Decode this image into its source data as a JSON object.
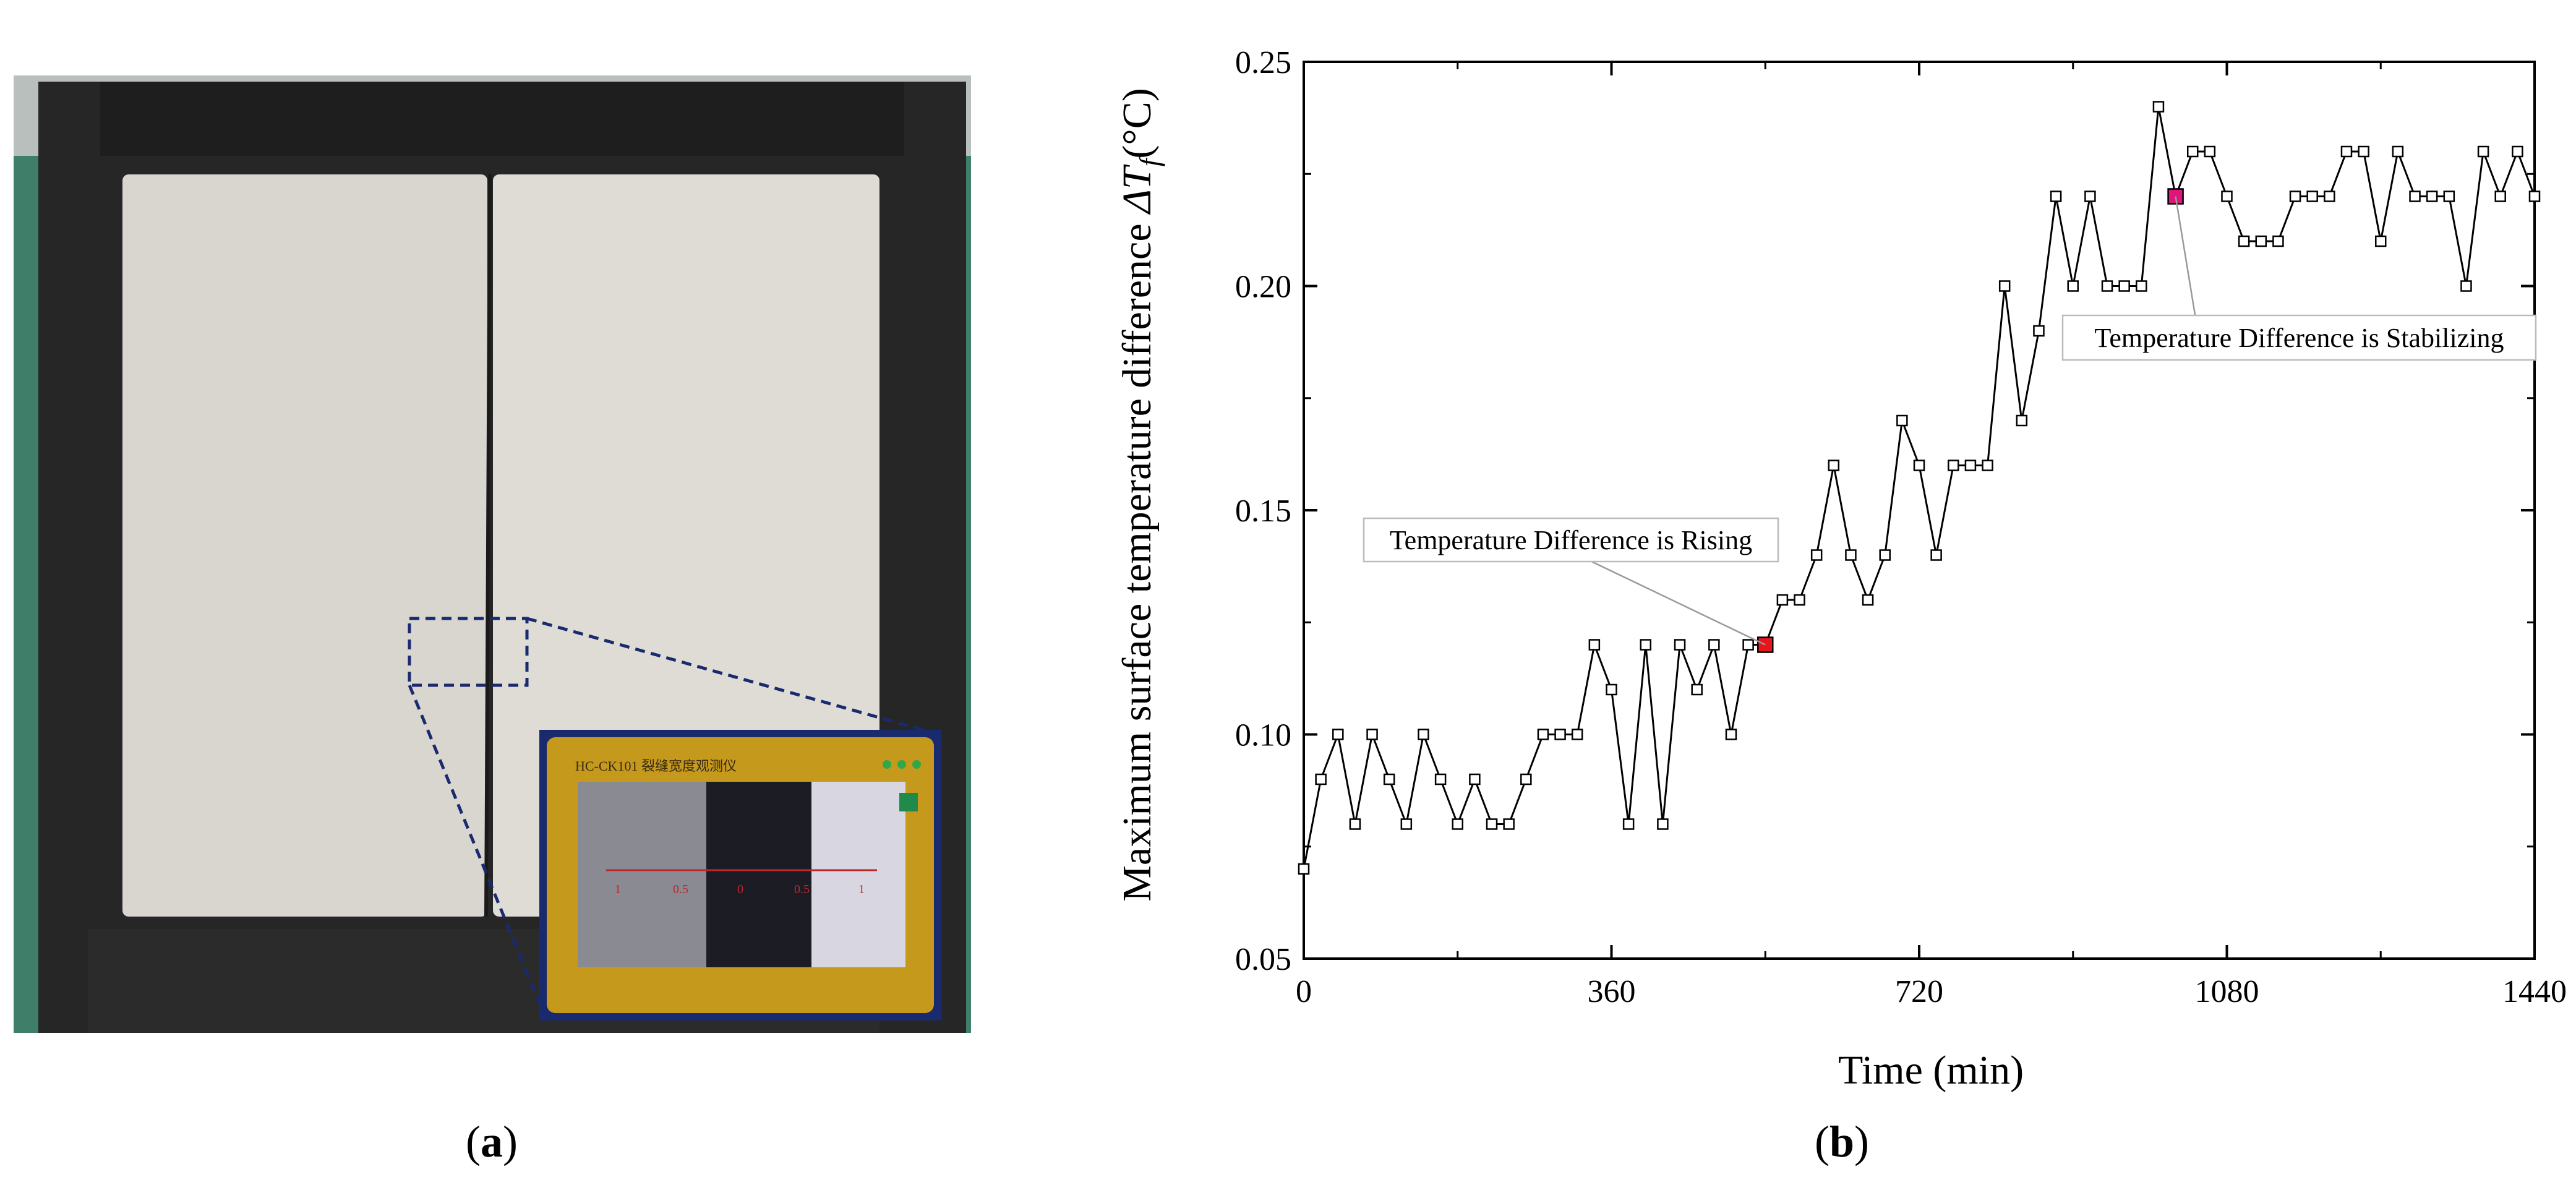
{
  "panels": {
    "a": {
      "open": "(",
      "letter": "a",
      "close": ")"
    },
    "b": {
      "open": "(",
      "letter": "b",
      "close": ")"
    }
  },
  "device": {
    "model_text": "HC-CK101 裂缝宽度观测仪",
    "scale_labels": [
      "1",
      "0.5",
      "0",
      "0.5",
      "1"
    ]
  },
  "colors": {
    "rising_marker": "#e8151b",
    "stabilizing_marker": "#e0157a",
    "device_frame": "#c59a1c",
    "dashed_box": "#1a2a6e"
  },
  "chart_data": {
    "type": "line",
    "xlabel": "Time (min)",
    "ylabel_prefix": "Maximum surface temperature difference ",
    "ylabel_symbol": "ΔT",
    "ylabel_subscript": "f",
    "ylabel_unit": "(°C)",
    "xlim": [
      0,
      1440
    ],
    "ylim": [
      0.05,
      0.25
    ],
    "xticks": [
      0,
      360,
      720,
      1080,
      1440
    ],
    "xtick_labels": [
      "0",
      "360",
      "720",
      "1080",
      "1440"
    ],
    "yticks": [
      0.05,
      0.1,
      0.15,
      0.2,
      0.25
    ],
    "ytick_labels": [
      "0.05",
      "0.10",
      "0.15",
      "0.20",
      "0.25"
    ],
    "grid": false,
    "legend": false,
    "x": [
      0,
      20,
      40,
      60,
      80,
      100,
      120,
      140,
      160,
      180,
      200,
      220,
      240,
      260,
      280,
      300,
      320,
      340,
      360,
      380,
      400,
      420,
      440,
      460,
      480,
      500,
      520,
      540,
      560,
      580,
      600,
      620,
      640,
      660,
      680,
      700,
      720,
      740,
      760,
      780,
      800,
      820,
      840,
      860,
      880,
      900,
      920,
      940,
      960,
      980,
      1000,
      1020,
      1040,
      1060,
      1080,
      1100,
      1120,
      1140,
      1160,
      1180,
      1200,
      1220,
      1240,
      1260,
      1280,
      1300,
      1320,
      1340,
      1360,
      1380,
      1400,
      1420,
      1440
    ],
    "y": [
      0.07,
      0.09,
      0.1,
      0.08,
      0.1,
      0.09,
      0.08,
      0.1,
      0.09,
      0.08,
      0.09,
      0.08,
      0.08,
      0.09,
      0.1,
      0.1,
      0.1,
      0.12,
      0.11,
      0.08,
      0.12,
      0.08,
      0.12,
      0.11,
      0.12,
      0.1,
      0.12,
      0.12,
      0.13,
      0.13,
      0.14,
      0.16,
      0.14,
      0.13,
      0.14,
      0.17,
      0.16,
      0.14,
      0.16,
      0.16,
      0.16,
      0.2,
      0.17,
      0.19,
      0.22,
      0.2,
      0.22,
      0.2,
      0.2,
      0.2,
      0.24,
      0.22,
      0.23,
      0.23,
      0.22,
      0.21,
      0.21,
      0.21,
      0.22,
      0.22,
      0.22,
      0.23,
      0.23,
      0.21,
      0.23,
      0.22,
      0.22,
      0.22,
      0.2,
      0.23,
      0.22,
      0.23,
      0.22
    ],
    "annotations": [
      {
        "text": "Temperature Difference is Rising",
        "x": 540,
        "y": 0.12,
        "marker": "rising"
      },
      {
        "text": "Temperature Difference is Stabilizing",
        "x": 1020,
        "y": 0.22,
        "marker": "stabilizing"
      }
    ]
  }
}
